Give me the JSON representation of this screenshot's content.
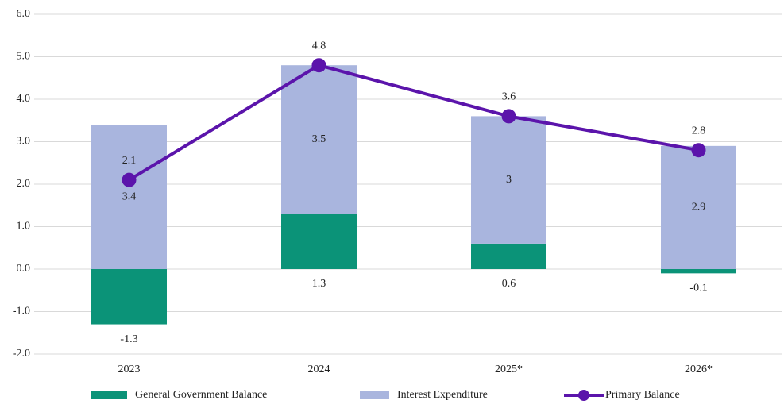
{
  "chart_data": {
    "type": "stacked-bar-line",
    "categories": [
      "2023",
      "2024",
      "2025*",
      "2026*"
    ],
    "series": [
      {
        "name": "General Government Balance",
        "color": "#0b9378",
        "kind": "bar",
        "values": [
          -1.3,
          1.3,
          0.6,
          -0.1
        ]
      },
      {
        "name": "Interest Expenditure",
        "color": "#a9b5de",
        "kind": "bar",
        "values": [
          3.4,
          3.5,
          3,
          2.9
        ]
      },
      {
        "name": "Primary Balance",
        "color": "#5b14ab",
        "kind": "line",
        "values": [
          2.1,
          4.8,
          3.6,
          2.8
        ]
      }
    ],
    "ylim": [
      -2,
      6
    ],
    "yticks": [
      {
        "value": -2,
        "label": "-2.0"
      },
      {
        "value": -1,
        "label": "-1.0"
      },
      {
        "value": 0,
        "label": "0.0"
      },
      {
        "value": 1,
        "label": "1.0"
      },
      {
        "value": 2,
        "label": "2.0"
      },
      {
        "value": 3,
        "label": "3.0"
      },
      {
        "value": 4,
        "label": "4.0"
      },
      {
        "value": 5,
        "label": "5.0"
      },
      {
        "value": 6,
        "label": "6.0"
      }
    ],
    "grid": true,
    "legend": "bottom"
  }
}
